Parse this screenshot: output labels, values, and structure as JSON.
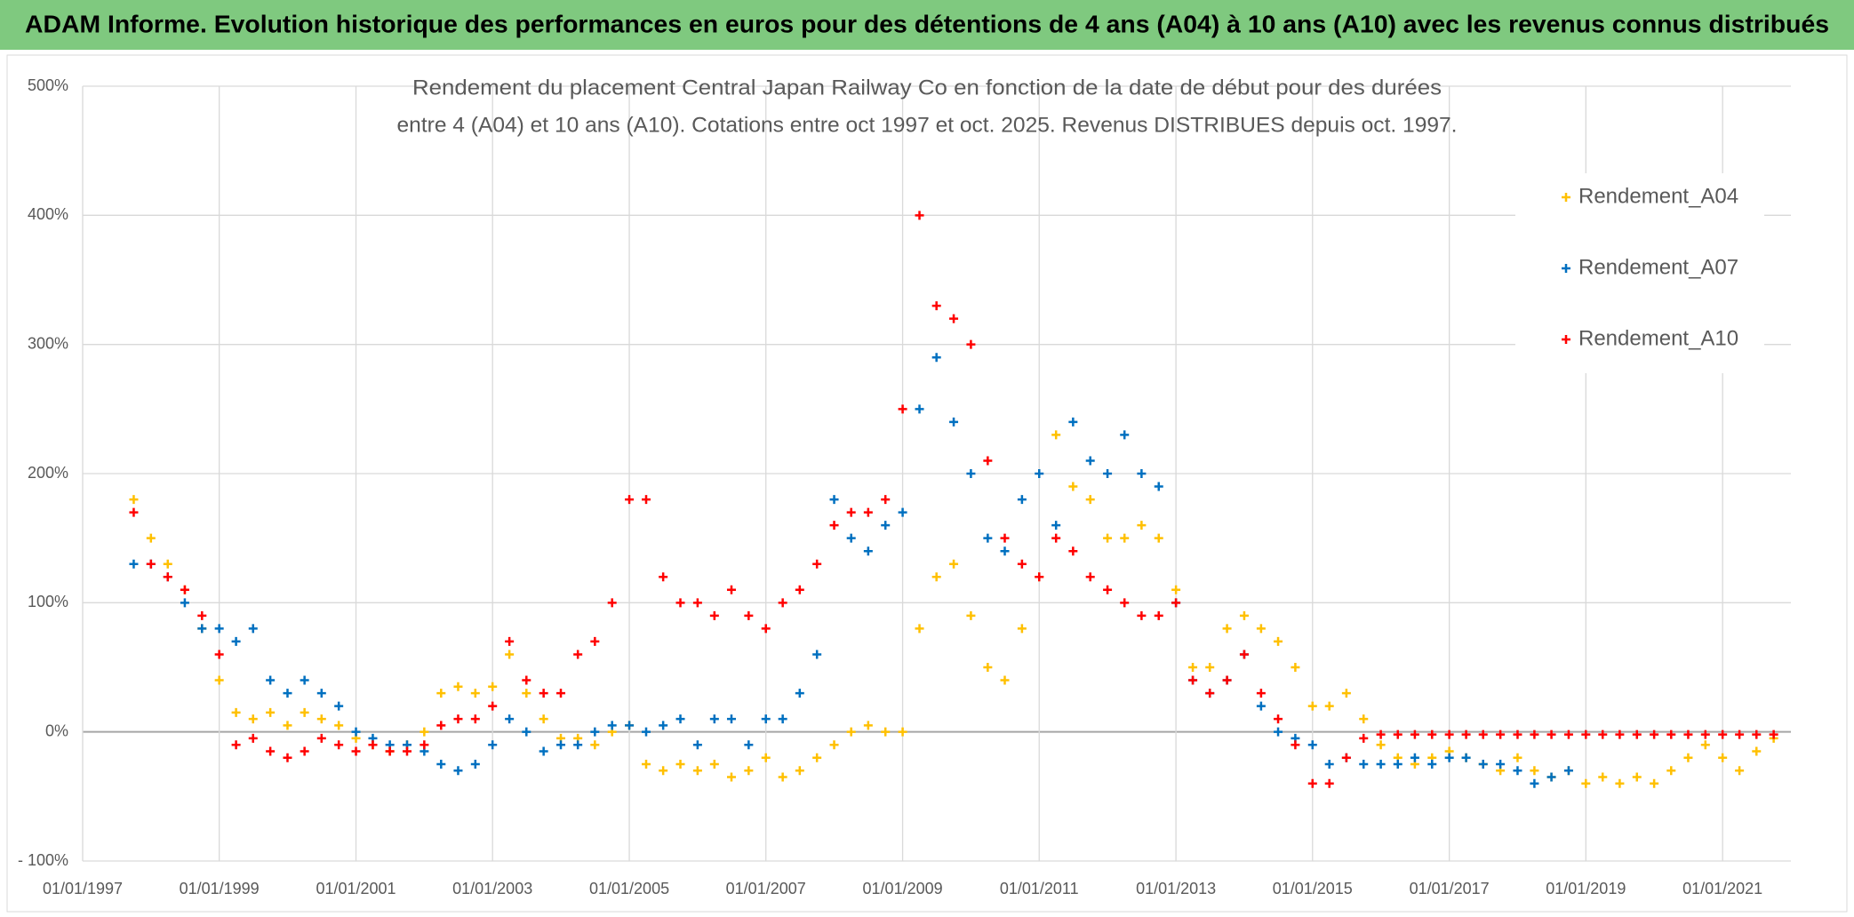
{
  "header": {
    "title": "ADAM Informe. Evolution historique des performances en euros pour des détentions de 4 ans (A04) à 10 ans (A10) avec les revenus connus distribués"
  },
  "chart_data": {
    "type": "scatter",
    "title": [
      "Rendement du placement Central Japan Railway Co en fonction de la date de début pour des durées",
      "entre 4 (A04) et 10 ans (A10). Cotations entre oct 1997 et oct. 2025. Revenus DISTRIBUES depuis oct. 1997."
    ],
    "x": [
      "1997-10-01",
      "1998-01-01",
      "1998-04-01",
      "1998-07-01",
      "1998-10-01",
      "1999-01-01",
      "1999-04-01",
      "1999-07-01",
      "1999-10-01",
      "2000-01-01",
      "2000-04-01",
      "2000-07-01",
      "2000-10-01",
      "2001-01-01",
      "2001-04-01",
      "2001-07-01",
      "2001-10-01",
      "2002-01-01",
      "2002-04-01",
      "2002-07-01",
      "2002-10-01",
      "2003-01-01",
      "2003-04-01",
      "2003-07-01",
      "2003-10-01",
      "2004-01-01",
      "2004-04-01",
      "2004-07-01",
      "2004-10-01",
      "2005-01-01",
      "2005-04-01",
      "2005-07-01",
      "2005-10-01",
      "2006-01-01",
      "2006-04-01",
      "2006-07-01",
      "2006-10-01",
      "2007-01-01",
      "2007-04-01",
      "2007-07-01",
      "2007-10-01",
      "2008-01-01",
      "2008-04-01",
      "2008-07-01",
      "2008-10-01",
      "2009-01-01",
      "2009-04-01",
      "2009-07-01",
      "2009-10-01",
      "2010-01-01",
      "2010-04-01",
      "2010-07-01",
      "2010-10-01",
      "2011-01-01",
      "2011-04-01",
      "2011-07-01",
      "2011-10-01",
      "2012-01-01",
      "2012-04-01",
      "2012-07-01",
      "2012-10-01",
      "2013-01-01",
      "2013-04-01",
      "2013-07-01",
      "2013-10-01",
      "2014-01-01",
      "2014-04-01",
      "2014-07-01",
      "2014-10-01",
      "2015-01-01",
      "2015-04-01",
      "2015-07-01",
      "2015-10-01",
      "2016-01-01",
      "2016-04-01",
      "2016-07-01",
      "2016-10-01",
      "2017-01-01",
      "2017-04-01",
      "2017-07-01",
      "2017-10-01",
      "2018-01-01",
      "2018-04-01",
      "2018-07-01",
      "2018-10-01",
      "2019-01-01",
      "2019-04-01",
      "2019-07-01",
      "2019-10-01",
      "2020-01-01",
      "2020-04-01",
      "2020-07-01",
      "2020-10-01",
      "2021-01-01",
      "2021-04-01",
      "2021-07-01",
      "2021-10-01"
    ],
    "series": [
      {
        "name": "Rendement_A04",
        "color": "#ffc000",
        "values": [
          180,
          150,
          130,
          110,
          80,
          40,
          15,
          10,
          15,
          5,
          15,
          10,
          5,
          -5,
          -10,
          -15,
          -10,
          0,
          30,
          35,
          30,
          35,
          60,
          30,
          10,
          -5,
          -5,
          -10,
          0,
          5,
          -25,
          -30,
          -25,
          -30,
          -25,
          -35,
          -30,
          -20,
          -35,
          -30,
          -20,
          -10,
          0,
          5,
          0,
          0,
          80,
          120,
          130,
          90,
          50,
          40,
          80,
          120,
          230,
          190,
          180,
          150,
          150,
          160,
          150,
          110,
          50,
          50,
          80,
          90,
          80,
          70,
          50,
          20,
          20,
          30,
          10,
          -10,
          -20,
          -25,
          -20,
          -15,
          -20,
          -25,
          -30,
          -20,
          -30,
          -35,
          -30,
          -40,
          -35,
          -40,
          -35,
          -40,
          -30,
          -20,
          -10,
          -20,
          -30,
          -15,
          -5
        ]
      },
      {
        "name": "Rendement_A07",
        "color": "#0070c0",
        "values": [
          130,
          130,
          120,
          100,
          80,
          80,
          70,
          80,
          40,
          30,
          40,
          30,
          20,
          0,
          -5,
          -10,
          -10,
          -15,
          -25,
          -30,
          -25,
          -10,
          10,
          0,
          -15,
          -10,
          -10,
          0,
          5,
          5,
          0,
          5,
          10,
          -10,
          10,
          10,
          -10,
          10,
          10,
          30,
          60,
          180,
          150,
          140,
          160,
          170,
          250,
          290,
          240,
          200,
          150,
          140,
          180,
          200,
          160,
          240,
          210,
          200,
          230,
          200,
          190,
          100,
          40,
          30,
          40,
          60,
          20,
          0,
          -5,
          -10,
          -25,
          -20,
          -25,
          -25,
          -25,
          -20,
          -25,
          -20,
          -20,
          -25,
          -25,
          -30,
          -40,
          -35,
          -30,
          null,
          null,
          null,
          null,
          null,
          null,
          null,
          null,
          null,
          null,
          null,
          null
        ]
      },
      {
        "name": "Rendement_A10",
        "color": "#ff0000",
        "values": [
          170,
          130,
          120,
          110,
          90,
          60,
          -10,
          -5,
          -15,
          -20,
          -15,
          -5,
          -10,
          -15,
          -10,
          -15,
          -15,
          -10,
          5,
          10,
          10,
          20,
          70,
          40,
          30,
          30,
          60,
          70,
          100,
          180,
          180,
          120,
          100,
          100,
          90,
          110,
          90,
          80,
          100,
          110,
          130,
          160,
          170,
          170,
          180,
          250,
          400,
          330,
          320,
          300,
          210,
          150,
          130,
          120,
          150,
          140,
          120,
          110,
          100,
          90,
          90,
          100,
          40,
          30,
          40,
          60,
          30,
          10,
          -10,
          -40,
          -40,
          -20,
          -5,
          -2,
          -2,
          -2,
          -2,
          -2,
          -2,
          -2,
          -2,
          -2,
          -2,
          -2,
          -2,
          -2,
          -2,
          -2,
          -2,
          -2,
          -2,
          -2,
          -2,
          -2,
          -2,
          -2,
          -2
        ]
      }
    ],
    "xlim": [
      "1997-01-01",
      "2022-01-01"
    ],
    "xticks": [
      {
        "value": "1997-01-01",
        "label": "01/01/1997"
      },
      {
        "value": "1999-01-01",
        "label": "01/01/1999"
      },
      {
        "value": "2001-01-01",
        "label": "01/01/2001"
      },
      {
        "value": "2003-01-01",
        "label": "01/01/2003"
      },
      {
        "value": "2005-01-01",
        "label": "01/01/2005"
      },
      {
        "value": "2007-01-01",
        "label": "01/01/2007"
      },
      {
        "value": "2009-01-01",
        "label": "01/01/2009"
      },
      {
        "value": "2011-01-01",
        "label": "01/01/2011"
      },
      {
        "value": "2013-01-01",
        "label": "01/01/2013"
      },
      {
        "value": "2015-01-01",
        "label": "01/01/2015"
      },
      {
        "value": "2017-01-01",
        "label": "01/01/2017"
      },
      {
        "value": "2019-01-01",
        "label": "01/01/2019"
      },
      {
        "value": "2021-01-01",
        "label": "01/01/2021"
      }
    ],
    "ylim": [
      -100,
      500
    ],
    "yticks": [
      {
        "value": -100,
        "label": "- 100%"
      },
      {
        "value": 0,
        "label": "0%"
      },
      {
        "value": 100,
        "label": "100%"
      },
      {
        "value": 200,
        "label": "200%"
      },
      {
        "value": 300,
        "label": "300%"
      },
      {
        "value": 400,
        "label": "400%"
      },
      {
        "value": 500,
        "label": "500%"
      }
    ],
    "grid": true,
    "legend": "right"
  }
}
